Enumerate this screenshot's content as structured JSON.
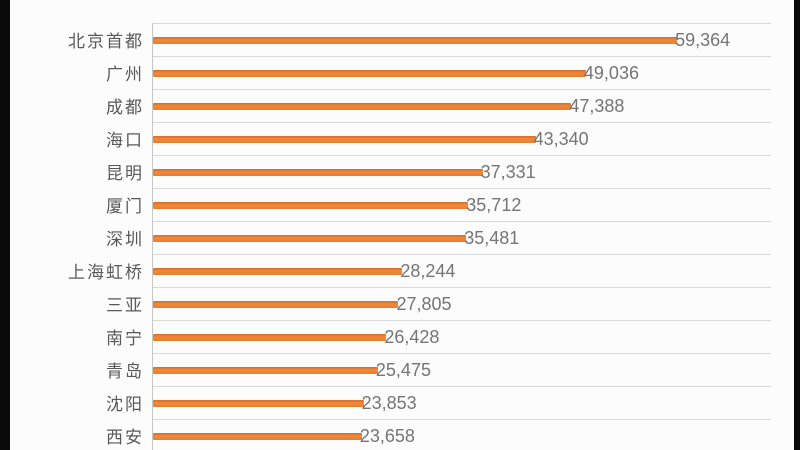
{
  "chart_data": {
    "type": "bar",
    "orientation": "horizontal",
    "title": "",
    "xlabel": "",
    "ylabel": "",
    "categories": [
      "北京首都",
      "广州",
      "成都",
      "海口",
      "昆明",
      "厦门",
      "深圳",
      "上海虹桥",
      "三亚",
      "南宁",
      "青岛",
      "沈阳",
      "西安"
    ],
    "values": [
      59364,
      49036,
      47388,
      43340,
      37331,
      35712,
      35481,
      28244,
      27805,
      26428,
      25475,
      23853,
      23658
    ],
    "value_labels": [
      "59,364",
      "49,036",
      "47,388",
      "43,340",
      "37,331",
      "35,712",
      "35,481",
      "28,244",
      "27,805",
      "26,428",
      "25,475",
      "23,853",
      "23,658"
    ],
    "xlim": [
      0,
      70000
    ],
    "grid": "horizontal-category-separators",
    "legend": "none",
    "bar_color": "#e87d2e",
    "gridline_color": "#d9d9d9",
    "axis_line_color": "#c6c6c6",
    "category_label_color": "#595959",
    "value_label_color": "#757575"
  }
}
